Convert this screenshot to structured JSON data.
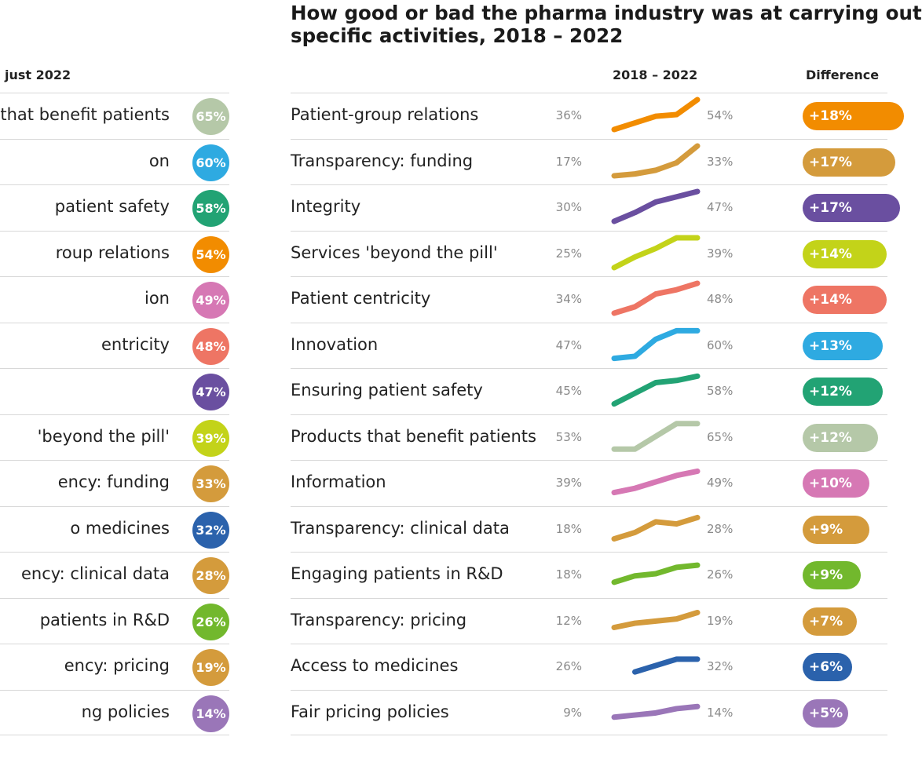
{
  "title_line1": "How good or bad the pharma industry was at carrying out",
  "title_line2": "specific activities, 2018 – 2022",
  "left_header": "just 2022",
  "col_trend_header": "2018 – 2022",
  "col_diff_header": "Difference",
  "left_rows": [
    {
      "label": "that benefit patients",
      "value": "65%",
      "color": "#b5c8a8"
    },
    {
      "label": "on",
      "value": "60%",
      "color": "#2eaae1"
    },
    {
      "label": "patient safety",
      "value": "58%",
      "color": "#22a374"
    },
    {
      "label": "roup relations",
      "value": "54%",
      "color": "#f28c00"
    },
    {
      "label": "ion",
      "value": "49%",
      "color": "#d678b4"
    },
    {
      "label": "entricity",
      "value": "48%",
      "color": "#ee7564"
    },
    {
      "label": "",
      "value": "47%",
      "color": "#6a4fa0"
    },
    {
      "label": "'beyond the pill'",
      "value": "39%",
      "color": "#c3d319"
    },
    {
      "label": "ency: funding",
      "value": "33%",
      "color": "#d49b3c"
    },
    {
      "label": "o medicines",
      "value": "32%",
      "color": "#2b62ac"
    },
    {
      "label": "ency: clinical data",
      "value": "28%",
      "color": "#d49b3c"
    },
    {
      "label": "patients in R&D",
      "value": "26%",
      "color": "#72b82d"
    },
    {
      "label": "ency: pricing",
      "value": "19%",
      "color": "#d49b3c"
    },
    {
      "label": "ng policies",
      "value": "14%",
      "color": "#9a76b8"
    }
  ],
  "chart_data": {
    "type": "line",
    "title": "How good or bad the pharma industry was at carrying out specific activities, 2018 – 2022",
    "x": [
      "2018",
      "2019",
      "2020",
      "2021",
      "2022"
    ],
    "ylim": [
      0,
      100
    ],
    "series": [
      {
        "name": "Patient-group relations",
        "values": [
          36,
          40,
          44,
          45,
          54
        ],
        "start_label": "36%",
        "end_label": "54%",
        "diff": "+18%",
        "color": "#f28c00"
      },
      {
        "name": "Transparency: funding",
        "values": [
          17,
          18,
          20,
          24,
          33
        ],
        "start_label": "17%",
        "end_label": "33%",
        "diff": "+17%",
        "color": "#d49b3c"
      },
      {
        "name": "Integrity",
        "values": [
          30,
          35,
          41,
          44,
          47
        ],
        "start_label": "30%",
        "end_label": "47%",
        "diff": "+17%",
        "color": "#6a4fa0"
      },
      {
        "name": "Services 'beyond the pill'",
        "values": [
          25,
          30,
          34,
          39,
          39
        ],
        "start_label": "25%",
        "end_label": "39%",
        "diff": "+14%",
        "color": "#c3d319"
      },
      {
        "name": "Patient centricity",
        "values": [
          34,
          37,
          43,
          45,
          48
        ],
        "start_label": "34%",
        "end_label": "48%",
        "diff": "+14%",
        "color": "#ee7564"
      },
      {
        "name": "Innovation",
        "values": [
          47,
          48,
          56,
          60,
          60
        ],
        "start_label": "47%",
        "end_label": "60%",
        "diff": "+13%",
        "color": "#2eaae1"
      },
      {
        "name": "Ensuring patient safety",
        "values": [
          45,
          50,
          55,
          56,
          58
        ],
        "start_label": "45%",
        "end_label": "58%",
        "diff": "+12%",
        "color": "#22a374"
      },
      {
        "name": "Products that benefit patients",
        "values": [
          53,
          53,
          59,
          65,
          65
        ],
        "start_label": "53%",
        "end_label": "65%",
        "diff": "+12%",
        "color": "#b5c8a8"
      },
      {
        "name": "Information",
        "values": [
          39,
          41,
          44,
          47,
          49
        ],
        "start_label": "39%",
        "end_label": "49%",
        "diff": "+10%",
        "color": "#d678b4"
      },
      {
        "name": "Transparency: clinical data",
        "values": [
          18,
          21,
          26,
          25,
          28
        ],
        "start_label": "18%",
        "end_label": "28%",
        "diff": "+9%",
        "color": "#d49b3c"
      },
      {
        "name": "Engaging patients in R&D",
        "values": [
          18,
          21,
          22,
          25,
          26
        ],
        "start_label": "18%",
        "end_label": "26%",
        "diff": "+9%",
        "color": "#72b82d"
      },
      {
        "name": "Transparency: pricing",
        "values": [
          12,
          14,
          15,
          16,
          19
        ],
        "start_label": "12%",
        "end_label": "19%",
        "diff": "+7%",
        "color": "#d49b3c"
      },
      {
        "name": "Access to medicines",
        "values": [
          null,
          26,
          29,
          32,
          32
        ],
        "start_label": "26%",
        "end_label": "32%",
        "diff": "+6%",
        "color": "#2b62ac"
      },
      {
        "name": "Fair pricing policies",
        "values": [
          9,
          10,
          11,
          13,
          14
        ],
        "start_label": "9%",
        "end_label": "14%",
        "diff": "+5%",
        "color": "#9a76b8"
      }
    ]
  }
}
